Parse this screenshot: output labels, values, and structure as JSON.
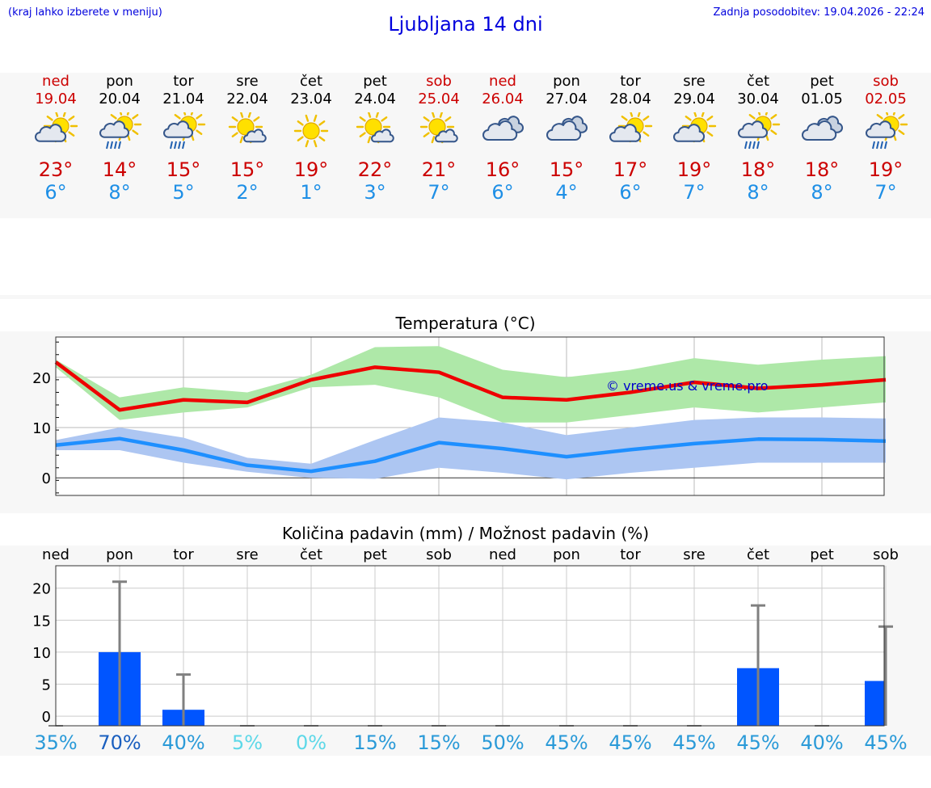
{
  "header": {
    "hint": "(kraj lahko izberete v meniju)",
    "title": "Ljubljana 14 dni",
    "updated": "Zadnja posodobitev: 19.04.2026 - 22:24"
  },
  "days": [
    {
      "name": "ned",
      "date": "19.04",
      "icon": "sun-cloud-icon",
      "tmax": "23°",
      "tmin": "6°",
      "weekend": true
    },
    {
      "name": "pon",
      "date": "20.04",
      "icon": "sun-cloud-rain-icon",
      "tmax": "14°",
      "tmin": "8°",
      "weekend": false
    },
    {
      "name": "tor",
      "date": "21.04",
      "icon": "sun-cloud-rain-icon",
      "tmax": "15°",
      "tmin": "5°",
      "weekend": false
    },
    {
      "name": "sre",
      "date": "22.04",
      "icon": "sun-small-cloud-icon",
      "tmax": "15°",
      "tmin": "2°",
      "weekend": false
    },
    {
      "name": "čet",
      "date": "23.04",
      "icon": "sun-icon",
      "tmax": "19°",
      "tmin": "1°",
      "weekend": false
    },
    {
      "name": "pet",
      "date": "24.04",
      "icon": "sun-small-cloud-icon",
      "tmax": "22°",
      "tmin": "3°",
      "weekend": false
    },
    {
      "name": "sob",
      "date": "25.04",
      "icon": "sun-small-cloud-icon",
      "tmax": "21°",
      "tmin": "7°",
      "weekend": true
    },
    {
      "name": "ned",
      "date": "26.04",
      "icon": "cloud-icon",
      "tmax": "16°",
      "tmin": "6°",
      "weekend": true
    },
    {
      "name": "pon",
      "date": "27.04",
      "icon": "cloud-icon",
      "tmax": "15°",
      "tmin": "4°",
      "weekend": false
    },
    {
      "name": "tor",
      "date": "28.04",
      "icon": "sun-cloud-icon",
      "tmax": "17°",
      "tmin": "6°",
      "weekend": false
    },
    {
      "name": "sre",
      "date": "29.04",
      "icon": "sun-cloud-icon",
      "tmax": "19°",
      "tmin": "7°",
      "weekend": false
    },
    {
      "name": "čet",
      "date": "30.04",
      "icon": "sun-cloud-rain-icon",
      "tmax": "18°",
      "tmin": "8°",
      "weekend": false
    },
    {
      "name": "pet",
      "date": "01.05",
      "icon": "cloud-icon",
      "tmax": "18°",
      "tmin": "8°",
      "weekend": false
    },
    {
      "name": "sob",
      "date": "02.05",
      "icon": "sun-cloud-rain-icon",
      "tmax": "19°",
      "tmin": "7°",
      "weekend": true
    }
  ],
  "colors": {
    "weekend": "#cc0000",
    "tmax": "#cc0000",
    "tmin": "#1e8fe6",
    "maxLine": "#ee0000",
    "maxBand": "#aee8a8",
    "minLine": "#1e8fff",
    "minBand": "#adc6f2",
    "bar": "#0055ff",
    "errorBar": "#808080"
  },
  "chart_data": [
    {
      "type": "line",
      "title": "Temperatura (°C)",
      "watermark": "© vreme.us & vreme.pro",
      "ylim": [
        -3.5,
        28
      ],
      "yticks": [
        0,
        10,
        20
      ],
      "grid": true,
      "series": [
        {
          "values": [
            23,
            13.5,
            15.5,
            15,
            19.5,
            22,
            21,
            16,
            15.5,
            17,
            19,
            17.8,
            18.5,
            19.5
          ],
          "upper": [
            23.5,
            16,
            18,
            17,
            20.5,
            26,
            26.2,
            21.5,
            20,
            21.5,
            23.8,
            22.5,
            23.5,
            24.2
          ],
          "lower": [
            22,
            11.5,
            13,
            14,
            18,
            18.5,
            16,
            11,
            11,
            12.5,
            14,
            13,
            14,
            15
          ]
        },
        {
          "values": [
            6.5,
            7.8,
            5.5,
            2.5,
            1.3,
            3.3,
            7,
            5.8,
            4.2,
            5.6,
            6.8,
            7.7,
            7.6,
            7.3
          ],
          "upper": [
            7.5,
            10,
            8,
            4,
            2.8,
            7.5,
            12,
            11,
            8.5,
            10,
            11.5,
            12,
            12,
            11.8
          ],
          "lower": [
            5.5,
            5.5,
            3,
            1.2,
            0,
            -0.2,
            2,
            1,
            -0.3,
            1,
            2,
            3,
            3,
            3
          ]
        }
      ]
    },
    {
      "type": "bar",
      "title": "Količina padavin (mm) / Možnost padavin (%)",
      "categories": [
        "ned",
        "pon",
        "tor",
        "sre",
        "čet",
        "pet",
        "sob",
        "ned",
        "pon",
        "tor",
        "sre",
        "čet",
        "pet",
        "sob"
      ],
      "ylim": [
        -1.5,
        23.5
      ],
      "yticks": [
        0,
        5,
        10,
        15,
        20
      ],
      "values": [
        0,
        10,
        1,
        0,
        0,
        0,
        0,
        0,
        0,
        0,
        0,
        7.5,
        0,
        5.5
      ],
      "error_high": [
        0,
        21,
        6.5,
        0,
        0,
        0,
        0,
        0,
        0,
        0,
        0,
        17.3,
        0,
        14
      ],
      "probability": [
        "35%",
        "70%",
        "40%",
        "5%",
        "0%",
        "15%",
        "15%",
        "50%",
        "45%",
        "45%",
        "45%",
        "45%",
        "40%",
        "45%"
      ],
      "probability_colors": [
        "#2a9ad8",
        "#1a5fbf",
        "#2a9ad8",
        "#5dd8e8",
        "#5dd8e8",
        "#2a9ad8",
        "#2a9ad8",
        "#2a9ad8",
        "#2a9ad8",
        "#2a9ad8",
        "#2a9ad8",
        "#2a9ad8",
        "#2a9ad8",
        "#2a9ad8"
      ]
    }
  ]
}
